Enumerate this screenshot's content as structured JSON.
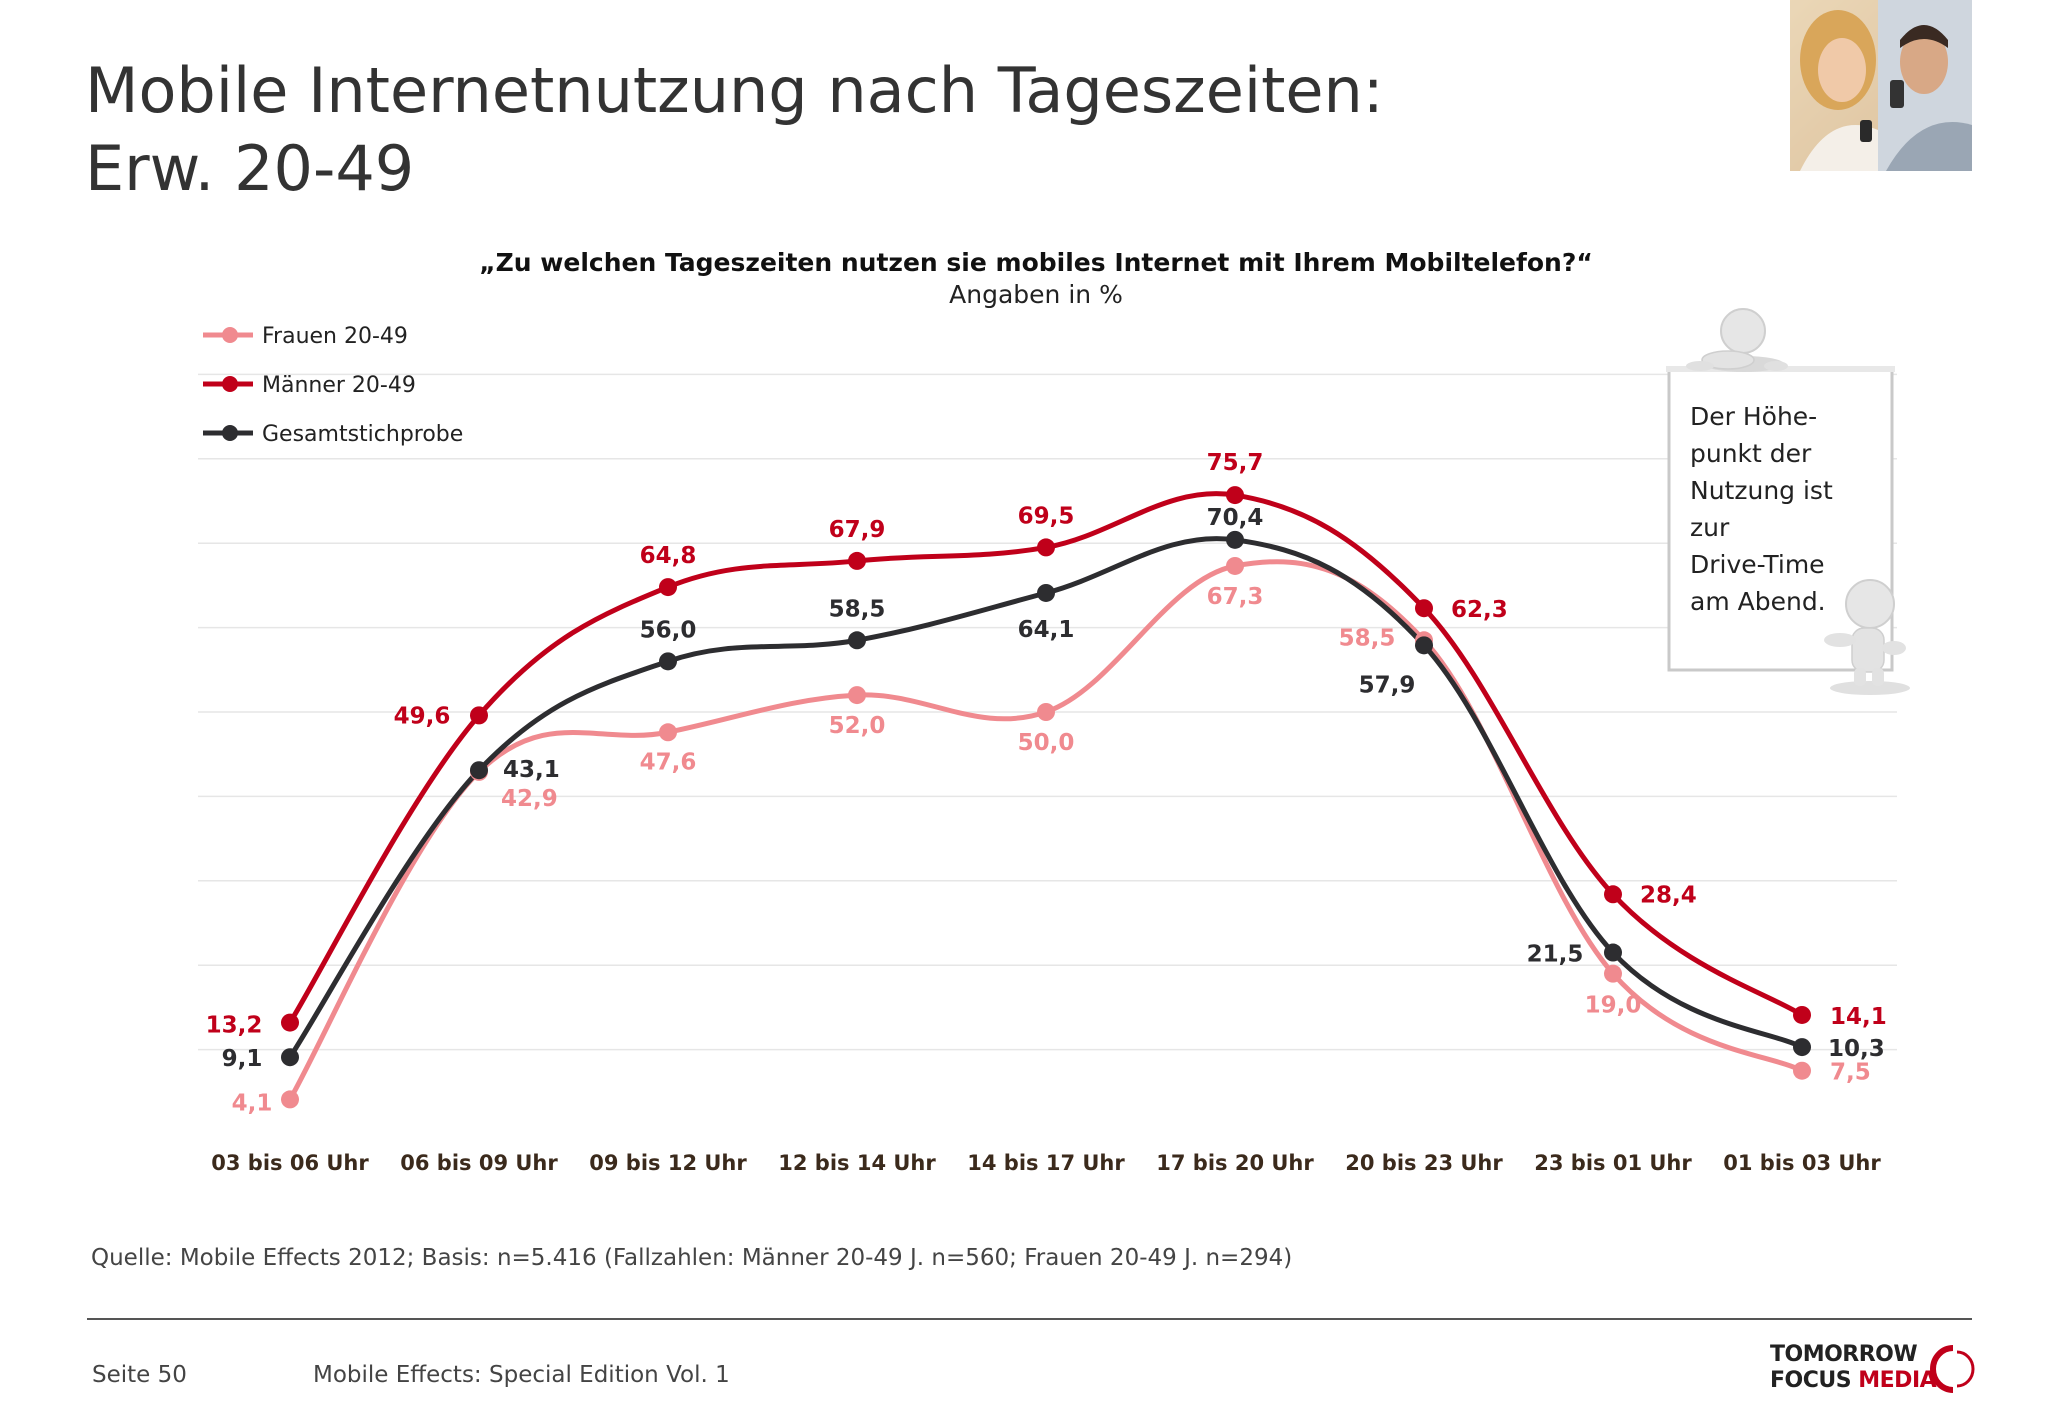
{
  "title": {
    "line1": "Mobile Internetnutzung nach Tageszeiten:",
    "line2": "Erw. 20-49"
  },
  "chart_data": {
    "type": "line",
    "title": "„Zu welchen Tageszeiten nutzen sie mobiles Internet mit Ihrem Mobiltelefon?“",
    "subtitle": "Angaben in %",
    "categories": [
      "03 bis 06 Uhr",
      "06 bis 09 Uhr",
      "09 bis 12 Uhr",
      "12 bis 14 Uhr",
      "14 bis 17 Uhr",
      "17 bis 20 Uhr",
      "20 bis 23 Uhr",
      "23 bis 01 Uhr",
      "01 bis 03 Uhr"
    ],
    "series": [
      {
        "name": "Frauen 20-49",
        "color": "#f08a8f",
        "values": [
          4.1,
          42.9,
          47.6,
          52.0,
          50.0,
          67.3,
          58.5,
          19.0,
          7.5
        ],
        "labels": [
          "4,1",
          "42,9",
          "47,6",
          "52,0",
          "50,0",
          "67,3",
          "58,5",
          "19,0",
          "7,5"
        ]
      },
      {
        "name": "Männer 20-49",
        "color": "#c0001a",
        "values": [
          13.2,
          49.6,
          64.8,
          67.9,
          69.5,
          75.7,
          62.3,
          28.4,
          14.1
        ],
        "labels": [
          "13,2",
          "49,6",
          "64,8",
          "67,9",
          "69,5",
          "75,7",
          "62,3",
          "28,4",
          "14,1"
        ]
      },
      {
        "name": "Gesamtstichprobe",
        "color": "#2d2d30",
        "values": [
          9.1,
          43.1,
          56.0,
          58.5,
          64.1,
          70.4,
          57.9,
          21.5,
          10.3
        ],
        "labels": [
          "9,1",
          "43,1",
          "56,0",
          "58,5",
          "64,1",
          "70,4",
          "57,9",
          "21,5",
          "10,3"
        ]
      }
    ],
    "ylim": [
      0,
      100
    ],
    "grid": true,
    "legend_position": "top-left"
  },
  "note": {
    "lines": [
      "Der Höhe-",
      "punkt der",
      "Nutzung ist",
      "zur",
      "Drive-Time",
      "am Abend."
    ]
  },
  "source": "Quelle: Mobile Effects 2012; Basis: n=5.416 (Fallzahlen: Männer 20-49 J. n=560; Frauen 20-49 J. n=294)",
  "footer": {
    "page": "Seite 50",
    "publication": "Mobile Effects: Special Edition Vol. 1"
  },
  "logo": {
    "line1": "TOMORROW",
    "line2a": "FOCUS",
    "line2b": "MEDIA",
    "accent": "#c0001a"
  }
}
